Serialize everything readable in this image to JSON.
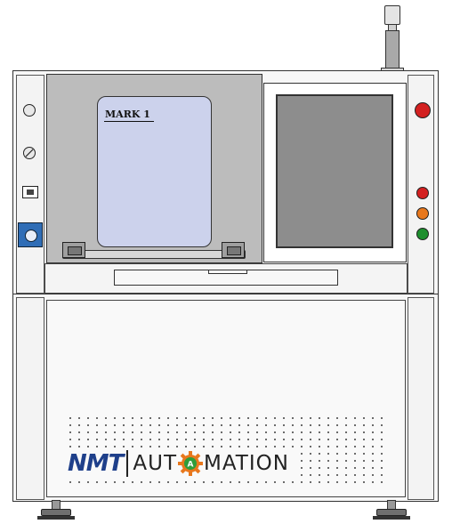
{
  "machine": {
    "door_label": "MARK 1",
    "logo": {
      "brand": "NMT",
      "word_left": "AUT",
      "gear_letter": "A",
      "word_right": "MATION",
      "brand_color": "#1e3f8a",
      "gear_colors": [
        "#e8781d",
        "#2f9d3a"
      ]
    },
    "tower_light": "tower-light",
    "screen_color": "#8d8d8d",
    "window_color": "#ccd2ec",
    "indicator_colors": {
      "power": "#d32020",
      "red": "#d32020",
      "orange": "#e8781d",
      "green": "#1e8f2e"
    }
  }
}
